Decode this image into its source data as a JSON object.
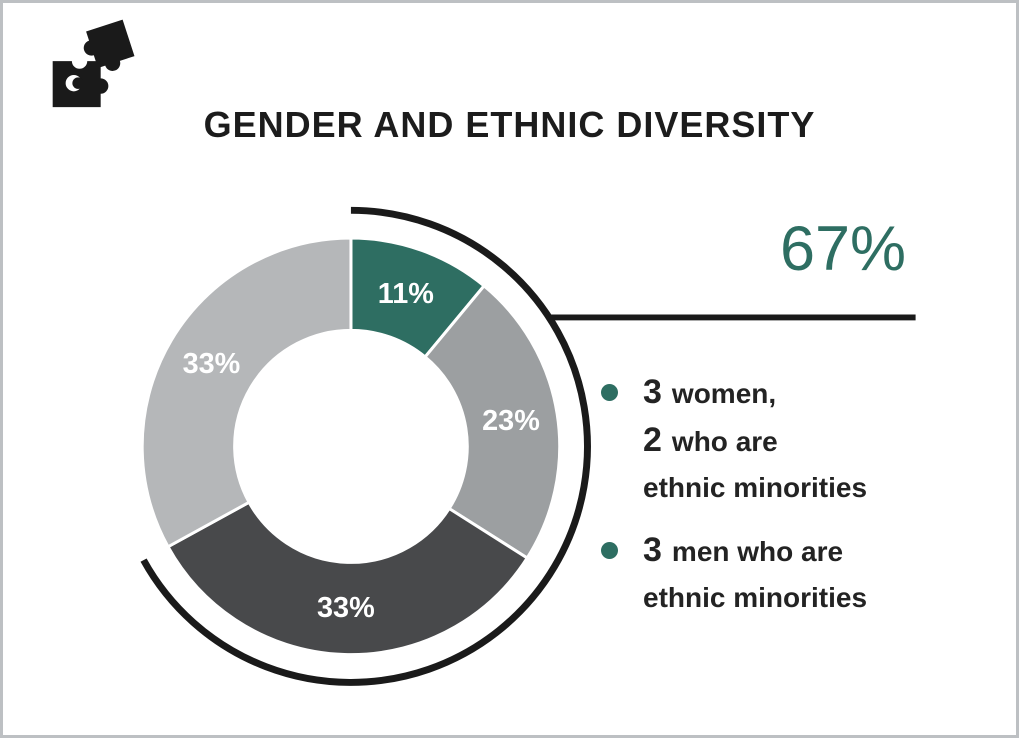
{
  "title": "GENDER AND ETHNIC DIVERSITY",
  "logo": {
    "name": "puzzle-pieces",
    "color": "#1a1a1a"
  },
  "chart_data": {
    "type": "pie",
    "subtype": "donut",
    "title": "GENDER AND ETHNIC DIVERSITY",
    "start_angle_deg": 0,
    "direction": "clockwise",
    "label_color": "#ffffff",
    "segments": [
      {
        "label": "11%",
        "value": 11,
        "color": "#2E6E62"
      },
      {
        "label": "23%",
        "value": 23,
        "color": "#9C9FA1"
      },
      {
        "label": "33%",
        "value": 33,
        "color": "#48494B"
      },
      {
        "label": "33%",
        "value": 33,
        "color": "#B5B7B9"
      }
    ],
    "highlight": {
      "percent": 67,
      "label": "67%",
      "arc_color": "#1a1a1a",
      "value_color": "#2E6E62"
    },
    "annotations": [
      "3 women, 2 who are ethnic minorities",
      "3 men who are ethnic minorities"
    ]
  },
  "callout": {
    "value": "67%",
    "dot_color": "#2E6E62",
    "text_color": "#232323",
    "bullets": [
      {
        "lines": [
          {
            "num": "3",
            "text": "women,"
          },
          {
            "num": "2",
            "text": "who are"
          },
          {
            "num": "",
            "text": "ethnic minorities"
          }
        ]
      },
      {
        "lines": [
          {
            "num": "3",
            "text": "men who are"
          },
          {
            "num": "",
            "text": "ethnic minorities"
          }
        ]
      }
    ]
  }
}
